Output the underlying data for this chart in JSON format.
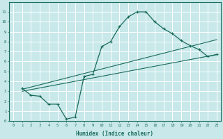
{
  "xlabel": "Humidex (Indice chaleur)",
  "xlim": [
    -0.5,
    23.5
  ],
  "ylim": [
    0,
    12
  ],
  "xticks": [
    0,
    1,
    2,
    3,
    4,
    5,
    6,
    7,
    8,
    9,
    10,
    11,
    12,
    13,
    14,
    15,
    16,
    17,
    18,
    19,
    20,
    21,
    22,
    23
  ],
  "yticks": [
    0,
    1,
    2,
    3,
    4,
    5,
    6,
    7,
    8,
    9,
    10,
    11
  ],
  "color": "#1a6b5a",
  "bg_color": "#c8e8ea",
  "grid_color": "#ffffff",
  "curve1_x": [
    1,
    2,
    3,
    4,
    5,
    6,
    7,
    8,
    9,
    10,
    11,
    12,
    13,
    14,
    15,
    16,
    17,
    18,
    19,
    20,
    21,
    22,
    23
  ],
  "curve1_y": [
    3.3,
    2.6,
    2.5,
    1.7,
    1.7,
    0.2,
    0.4,
    4.5,
    4.7,
    7.5,
    8.0,
    9.5,
    10.5,
    11.0,
    11.0,
    10.0,
    9.3,
    8.8,
    8.1,
    7.6,
    7.2,
    6.5,
    6.7
  ],
  "line2_x": [
    1,
    23
  ],
  "line2_y": [
    3.0,
    6.7
  ],
  "line3_x": [
    1,
    23
  ],
  "line3_y": [
    3.2,
    8.2
  ]
}
